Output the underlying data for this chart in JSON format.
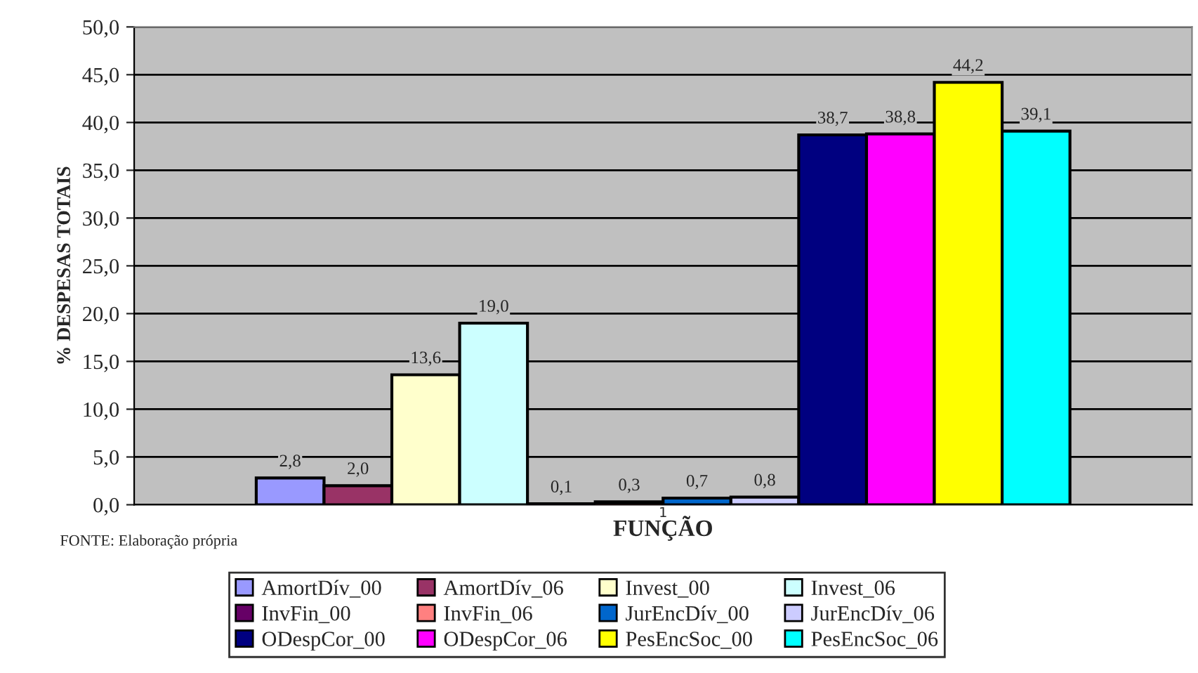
{
  "chart_data": {
    "type": "bar",
    "xlabel": "FUNÇÃO",
    "ylabel": "% DESPESAS TOTAIS",
    "categories": [
      "1"
    ],
    "series": [
      {
        "name": "AmortDív_00",
        "color": "#9999ff",
        "values": [
          2.8
        ],
        "value_labels": [
          "2,8"
        ]
      },
      {
        "name": "AmortDív_06",
        "color": "#993366",
        "values": [
          2.0
        ],
        "value_labels": [
          "2,0"
        ]
      },
      {
        "name": "Invest_00",
        "color": "#ffffcc",
        "values": [
          13.6
        ],
        "value_labels": [
          "13,6"
        ]
      },
      {
        "name": "Invest_06",
        "color": "#ccffff",
        "values": [
          19.0
        ],
        "value_labels": [
          "19,0"
        ]
      },
      {
        "name": "InvFin_00",
        "color": "#660066",
        "values": [
          0.1
        ],
        "value_labels": [
          "0,1"
        ]
      },
      {
        "name": "InvFin_06",
        "color": "#ff8080",
        "values": [
          0.3
        ],
        "value_labels": [
          "0,3"
        ]
      },
      {
        "name": "JurEncDív_00",
        "color": "#0066cc",
        "values": [
          0.7
        ],
        "value_labels": [
          "0,7"
        ]
      },
      {
        "name": "JurEncDív_06",
        "color": "#ccccff",
        "values": [
          0.8
        ],
        "value_labels": [
          "0,8"
        ]
      },
      {
        "name": "ODespCor_00",
        "color": "#000080",
        "values": [
          38.7
        ],
        "value_labels": [
          "38,7"
        ]
      },
      {
        "name": "ODespCor_06",
        "color": "#ff00ff",
        "values": [
          38.8
        ],
        "value_labels": [
          "38,8"
        ]
      },
      {
        "name": "PesEncSoc_00",
        "color": "#ffff00",
        "values": [
          44.2
        ],
        "value_labels": [
          "44,2"
        ]
      },
      {
        "name": "PesEncSoc_06",
        "color": "#00ffff",
        "values": [
          39.1
        ],
        "value_labels": [
          "39,1"
        ]
      }
    ],
    "ylim": [
      0,
      50
    ],
    "yticks": [
      {
        "value": 0,
        "label": "0,0"
      },
      {
        "value": 5,
        "label": "5,0"
      },
      {
        "value": 10,
        "label": "10,0"
      },
      {
        "value": 15,
        "label": "15,0"
      },
      {
        "value": 20,
        "label": "20,0"
      },
      {
        "value": 25,
        "label": "25,0"
      },
      {
        "value": 30,
        "label": "30,0"
      },
      {
        "value": 35,
        "label": "35,0"
      },
      {
        "value": 40,
        "label": "40,0"
      },
      {
        "value": 45,
        "label": "45,0"
      },
      {
        "value": 50,
        "label": "50,0"
      }
    ],
    "grid": "y",
    "legend": "bottom",
    "annotations": [
      "FONTE: Elaboração própria"
    ]
  }
}
